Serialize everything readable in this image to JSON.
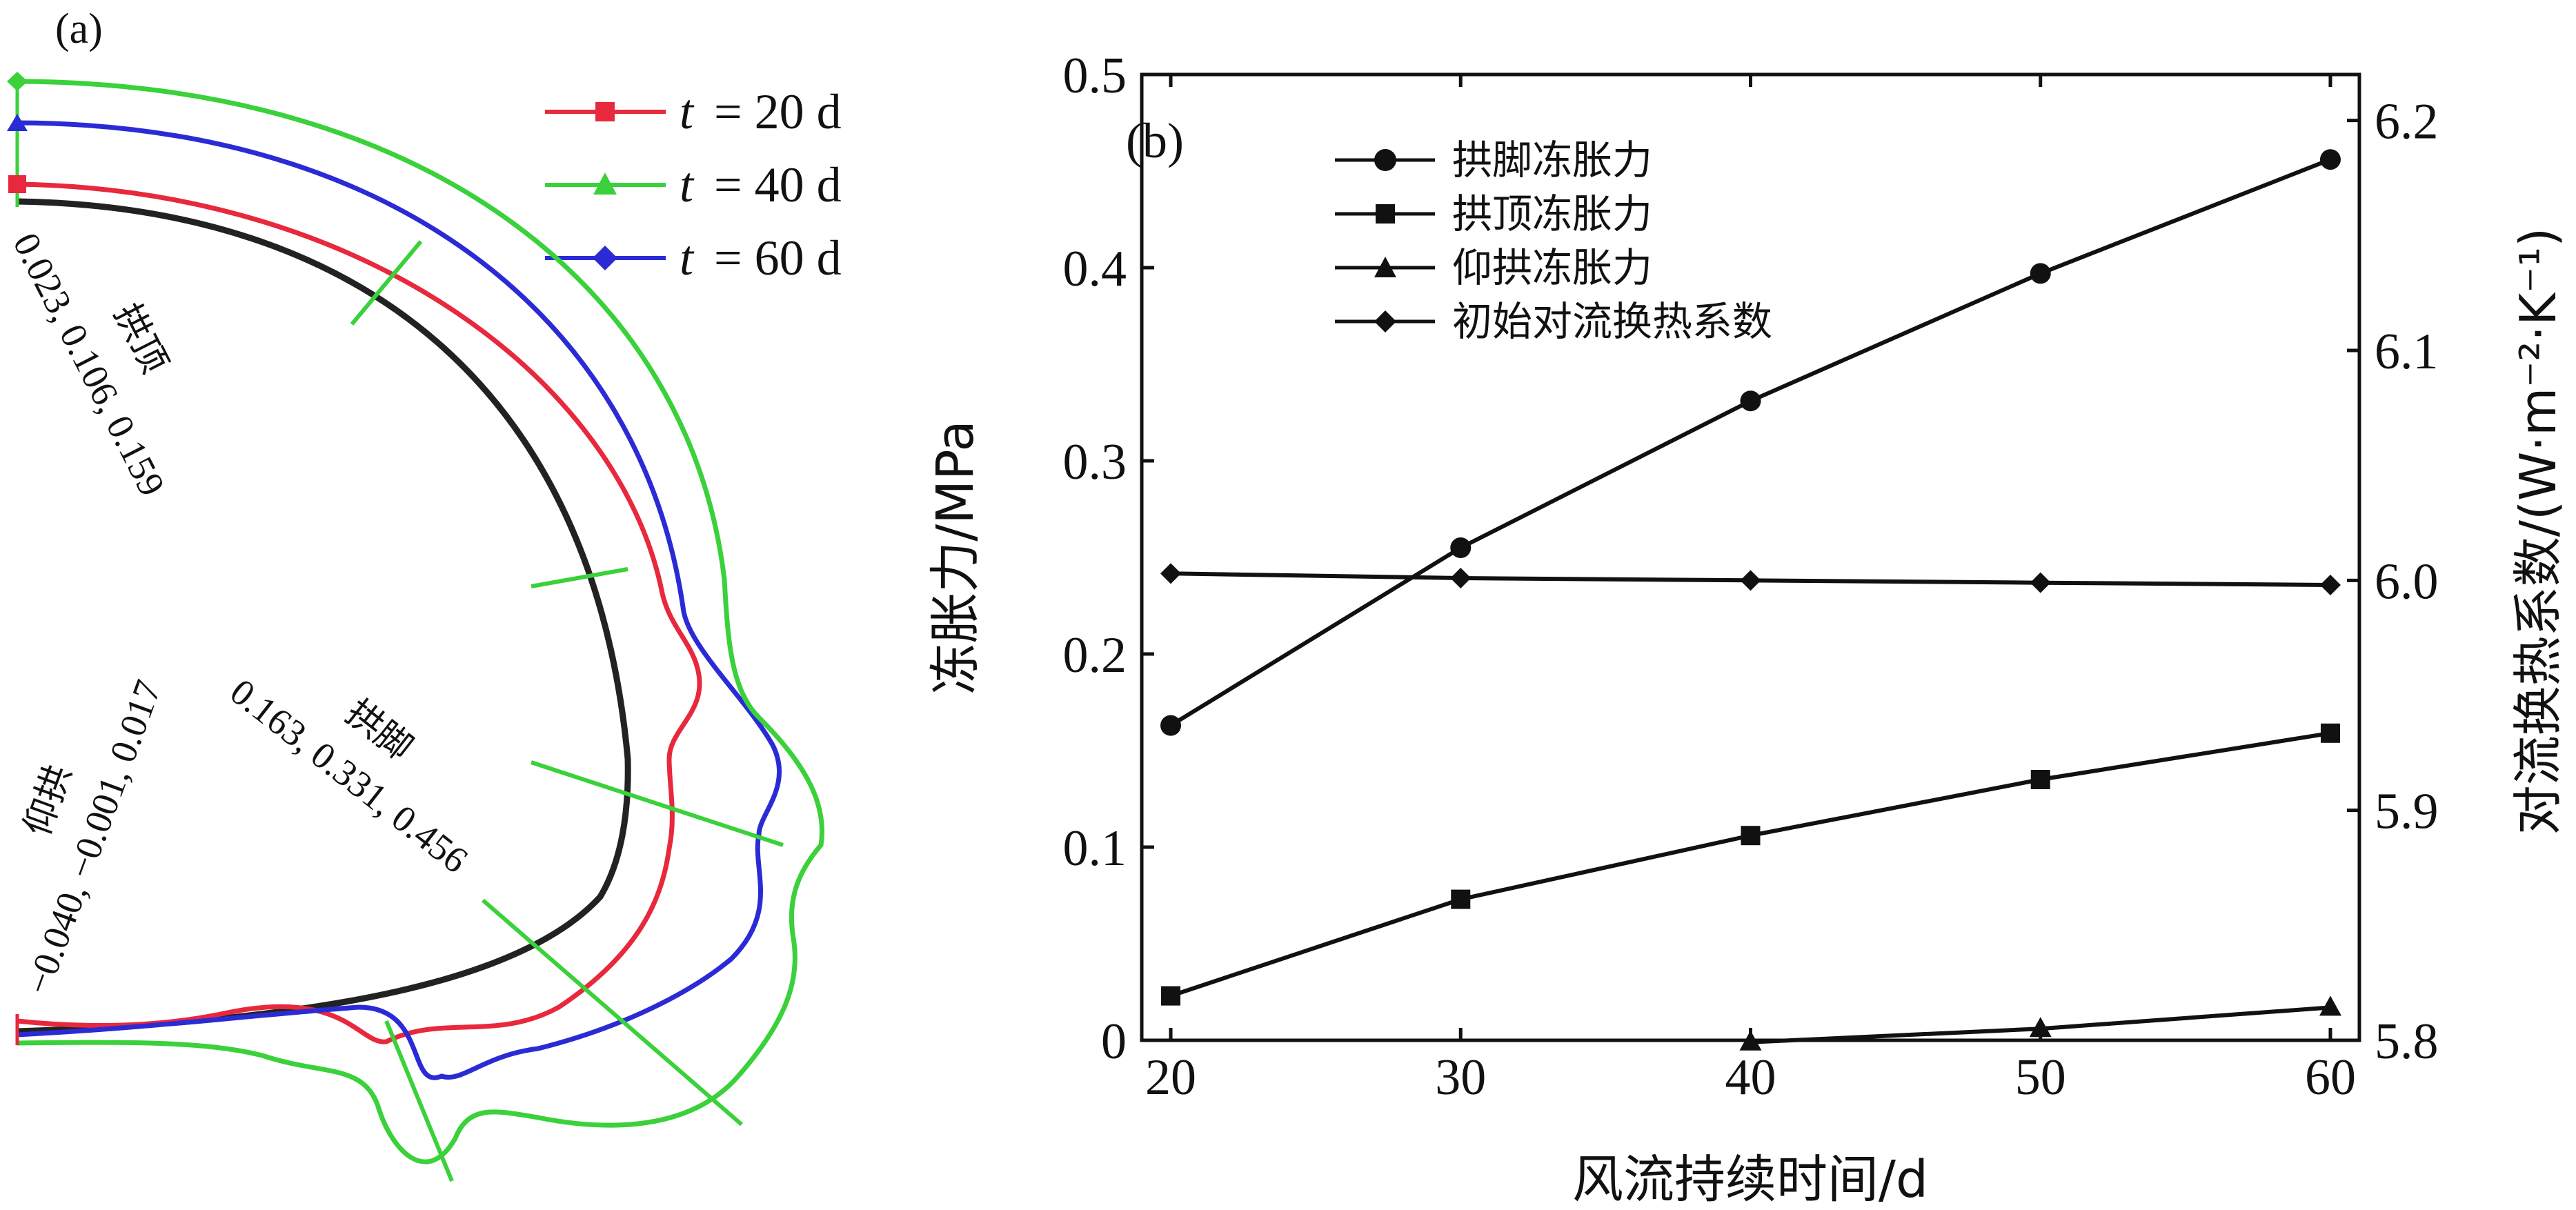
{
  "colors": {
    "t20": "#e8283c",
    "t40": "#3ad13a",
    "t60": "#2b2bd6",
    "lining": "#222222",
    "axis": "#111111"
  },
  "panel_a": {
    "label": "(a)",
    "legend": [
      {
        "t": "t",
        "rest": "= 20 d",
        "color": "#e8283c",
        "marker": "square-marker"
      },
      {
        "t": "t",
        "rest": "= 40 d",
        "color": "#3ad13a",
        "marker": "triangle-marker"
      },
      {
        "t": "t",
        "rest": "= 60 d",
        "color": "#2b2bd6",
        "marker": "diamond-marker"
      }
    ],
    "annotations": {
      "vault_name": "拱顶",
      "vault_values": "0.023, 0.106, 0.159",
      "foot_name": "拱脚",
      "foot_values": "0.163, 0.331, 0.456",
      "invert_name": "仰拱",
      "invert_values": "−0.040, −0.001, 0.017"
    }
  },
  "chart_data": {
    "type": "line",
    "panel_label": "(b)",
    "xlabel": "风流持续时间/d",
    "ylabel_left": "冻胀力/MPa",
    "ylabel_right": "对流换热系数/(W·m⁻²·K⁻¹)",
    "x_ticks": [
      "20",
      "30",
      "40",
      "50",
      "60"
    ],
    "y_left_ticks": [
      "0",
      "0.1",
      "0.2",
      "0.3",
      "0.4",
      "0.5"
    ],
    "y_right_ticks": [
      "5.8",
      "5.9",
      "6.0",
      "6.1",
      "6.2"
    ],
    "xlim": [
      19,
      61
    ],
    "ylim_left": [
      0,
      0.5
    ],
    "ylim_right": [
      5.8,
      6.22
    ],
    "legend_position": "top-left",
    "series": [
      {
        "name": "拱脚冻胀力",
        "marker": "circle",
        "axis": "left",
        "x": [
          20,
          30,
          40,
          50,
          60
        ],
        "values": [
          0.163,
          0.255,
          0.331,
          0.397,
          0.456
        ]
      },
      {
        "name": "拱顶冻胀力",
        "marker": "square",
        "axis": "left",
        "x": [
          20,
          30,
          40,
          50,
          60
        ],
        "values": [
          0.023,
          0.073,
          0.106,
          0.135,
          0.159
        ]
      },
      {
        "name": "仰拱冻胀力",
        "marker": "triangle",
        "axis": "left",
        "x": [
          40,
          50,
          60
        ],
        "values": [
          -0.001,
          0.006,
          0.017
        ]
      },
      {
        "name": "初始对流换热系数",
        "marker": "diamond",
        "axis": "right",
        "x": [
          20,
          30,
          40,
          50,
          60
        ],
        "values": [
          6.003,
          6.001,
          6.0,
          5.999,
          5.998
        ]
      }
    ]
  }
}
